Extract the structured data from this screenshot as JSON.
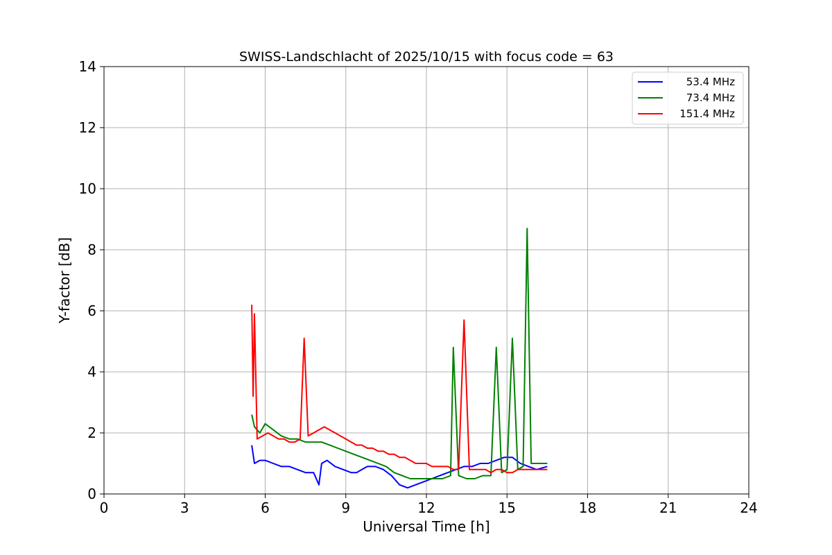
{
  "chart_data": {
    "type": "line",
    "title": "SWISS-Landschlacht of 2025/10/15 with focus code = 63",
    "xlabel": "Universal Time [h]",
    "ylabel": "Y-factor [dB]",
    "xlim": [
      0,
      24
    ],
    "ylim": [
      0,
      14
    ],
    "xticks": [
      "0",
      "3",
      "6",
      "9",
      "12",
      "15",
      "18",
      "21",
      "24"
    ],
    "yticks": [
      "0",
      "2",
      "4",
      "6",
      "8",
      "10",
      "12",
      "14"
    ],
    "grid": true,
    "legend_position": "top-right",
    "series": [
      {
        "name": "53.4 MHz",
        "color": "#0000ff",
        "x": [
          5.5,
          5.6,
          5.8,
          6.0,
          6.3,
          6.6,
          6.9,
          7.2,
          7.5,
          7.8,
          8.0,
          8.1,
          8.3,
          8.6,
          8.9,
          9.2,
          9.4,
          9.6,
          9.8,
          10.1,
          10.4,
          10.7,
          11.0,
          11.3,
          11.6,
          11.9,
          12.2,
          12.5,
          12.8,
          13.1,
          13.4,
          13.7,
          14.0,
          14.3,
          14.6,
          14.9,
          15.2,
          15.5,
          15.8,
          16.1,
          16.5
        ],
        "y": [
          1.6,
          1.0,
          1.1,
          1.1,
          1.0,
          0.9,
          0.9,
          0.8,
          0.7,
          0.7,
          0.3,
          1.0,
          1.1,
          0.9,
          0.8,
          0.7,
          0.7,
          0.8,
          0.9,
          0.9,
          0.8,
          0.6,
          0.3,
          0.2,
          0.3,
          0.4,
          0.5,
          0.6,
          0.7,
          0.8,
          0.9,
          0.9,
          1.0,
          1.0,
          1.1,
          1.2,
          1.2,
          1.0,
          0.9,
          0.8,
          0.9
        ]
      },
      {
        "name": "73.4 MHz",
        "color": "#008000",
        "x": [
          5.5,
          5.6,
          5.8,
          6.0,
          6.3,
          6.6,
          6.9,
          7.2,
          7.5,
          7.8,
          8.1,
          8.4,
          8.7,
          9.0,
          9.3,
          9.6,
          9.9,
          10.2,
          10.5,
          10.8,
          11.1,
          11.4,
          11.7,
          12.0,
          12.3,
          12.6,
          12.9,
          13.0,
          13.2,
          13.5,
          13.8,
          14.1,
          14.4,
          14.6,
          14.8,
          15.0,
          15.2,
          15.4,
          15.6,
          15.75,
          15.9,
          16.1,
          16.3,
          16.5
        ],
        "y": [
          2.6,
          2.2,
          2.0,
          2.3,
          2.1,
          1.9,
          1.8,
          1.8,
          1.7,
          1.7,
          1.7,
          1.6,
          1.5,
          1.4,
          1.3,
          1.2,
          1.1,
          1.0,
          0.9,
          0.7,
          0.6,
          0.5,
          0.5,
          0.5,
          0.5,
          0.5,
          0.6,
          4.8,
          0.6,
          0.5,
          0.5,
          0.6,
          0.6,
          4.8,
          0.7,
          0.8,
          5.1,
          0.8,
          0.9,
          8.7,
          1.0,
          1.0,
          1.0,
          1.0
        ]
      },
      {
        "name": "151.4 MHz",
        "color": "#ff0000",
        "x": [
          5.5,
          5.55,
          5.6,
          5.7,
          5.9,
          6.1,
          6.3,
          6.5,
          6.7,
          6.9,
          7.1,
          7.3,
          7.45,
          7.6,
          7.8,
          8.0,
          8.2,
          8.4,
          8.6,
          8.8,
          9.0,
          9.2,
          9.4,
          9.6,
          9.8,
          10.0,
          10.2,
          10.4,
          10.6,
          10.8,
          11.0,
          11.2,
          11.4,
          11.6,
          11.8,
          12.0,
          12.2,
          12.4,
          12.6,
          12.8,
          13.0,
          13.2,
          13.4,
          13.6,
          13.8,
          14.0,
          14.2,
          14.4,
          14.6,
          14.8,
          15.0,
          15.2,
          15.4,
          15.6,
          15.8,
          16.0,
          16.2,
          16.4,
          16.5
        ],
        "y": [
          6.2,
          3.2,
          5.9,
          1.8,
          1.9,
          2.0,
          1.9,
          1.8,
          1.8,
          1.7,
          1.7,
          1.8,
          5.1,
          1.9,
          2.0,
          2.1,
          2.2,
          2.1,
          2.0,
          1.9,
          1.8,
          1.7,
          1.6,
          1.6,
          1.5,
          1.5,
          1.4,
          1.4,
          1.3,
          1.3,
          1.2,
          1.2,
          1.1,
          1.0,
          1.0,
          1.0,
          0.9,
          0.9,
          0.9,
          0.9,
          0.8,
          0.8,
          5.7,
          0.8,
          0.8,
          0.8,
          0.8,
          0.7,
          0.8,
          0.8,
          0.7,
          0.7,
          0.8,
          0.8,
          0.8,
          0.8,
          0.8,
          0.8,
          0.8
        ]
      }
    ]
  }
}
